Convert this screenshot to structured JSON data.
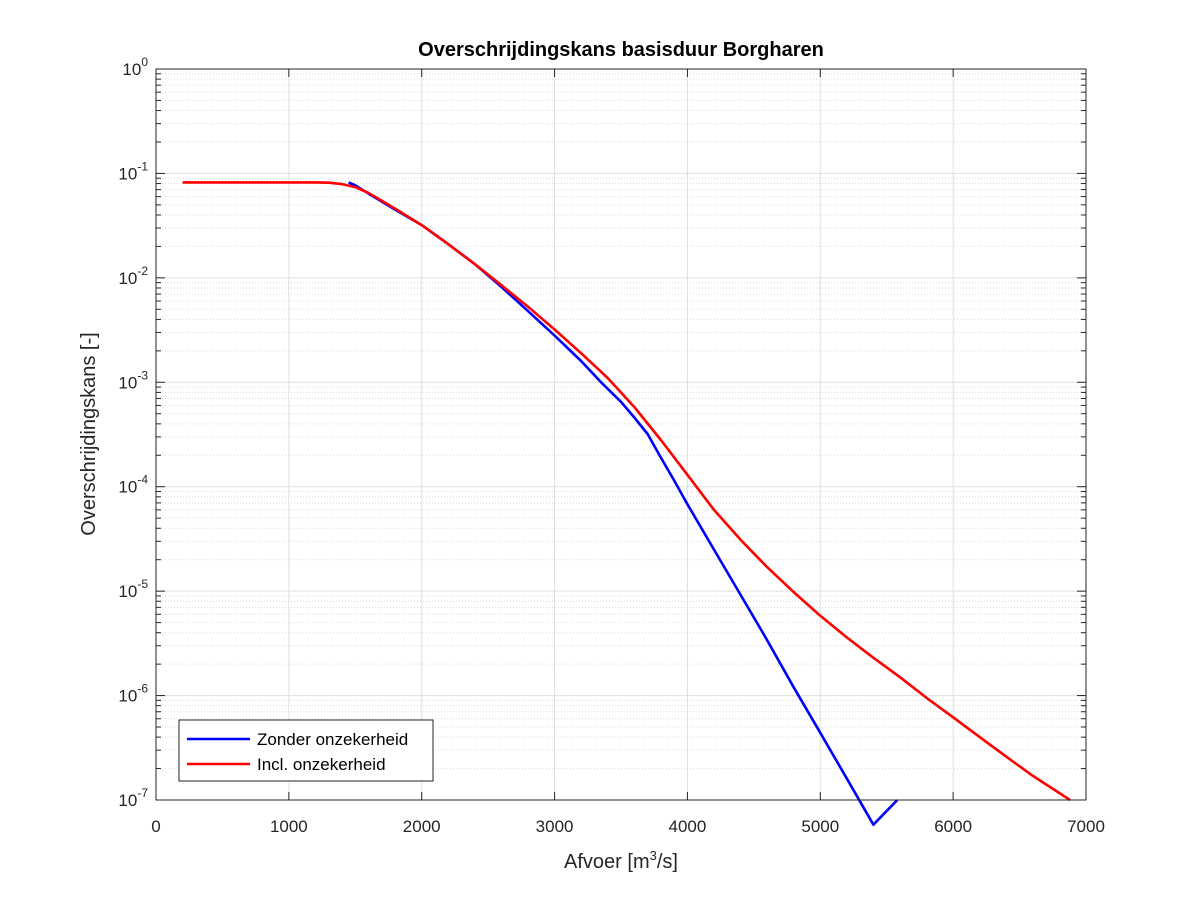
{
  "chart_data": {
    "type": "line",
    "title": "Overschrijdingskans basisduur Borgharen",
    "xlabel": {
      "prefix": "Afvoer [m",
      "sup": "3",
      "suffix": "/s]"
    },
    "ylabel": "Overschrijdingskans [-]",
    "xlim": [
      0,
      7000
    ],
    "ylim": [
      1e-07,
      1
    ],
    "yscale": "log",
    "grid": true,
    "minor_grid": true,
    "legend_position": "bottom-left",
    "x_ticks": [
      0,
      1000,
      2000,
      3000,
      4000,
      5000,
      6000,
      7000
    ],
    "x_tick_labels": [
      "0",
      "1000",
      "2000",
      "3000",
      "4000",
      "5000",
      "6000",
      "7000"
    ],
    "y_ticks": [
      {
        "value": 1,
        "base": "10",
        "exp": "0"
      },
      {
        "value": 0.1,
        "base": "10",
        "exp": "-1"
      },
      {
        "value": 0.01,
        "base": "10",
        "exp": "-2"
      },
      {
        "value": 0.001,
        "base": "10",
        "exp": "-3"
      },
      {
        "value": 0.0001,
        "base": "10",
        "exp": "-4"
      },
      {
        "value": 1e-05,
        "base": "10",
        "exp": "-5"
      },
      {
        "value": 1e-06,
        "base": "10",
        "exp": "-6"
      },
      {
        "value": 1e-07,
        "base": "10",
        "exp": "-7"
      }
    ],
    "series": [
      {
        "name": "Zonder onzekerheid",
        "color": "#0000ff",
        "x": [
          1450,
          1500,
          1600,
          1800,
          2000,
          2200,
          2400,
          2600,
          2800,
          3000,
          3200,
          3350,
          3500,
          3600,
          3700,
          3800,
          3900,
          4000,
          4200,
          4400,
          4600,
          4800,
          5000,
          5200,
          5400,
          5580
        ],
        "y": [
          0.082,
          0.077,
          0.064,
          0.045,
          0.032,
          0.021,
          0.0135,
          0.0082,
          0.0048,
          0.0028,
          0.0016,
          0.001,
          0.00065,
          0.00046,
          0.00032,
          0.00019,
          0.000115,
          6.8e-05,
          2.5e-05,
          9.2e-06,
          3.4e-06,
          1.2e-06,
          4.4e-07,
          1.6e-07,
          5.8e-08,
          1e-07
        ]
      },
      {
        "name": "Incl. onzekerheid",
        "color": "#ff0000",
        "x": [
          200,
          400,
          800,
          1200,
          1300,
          1400,
          1500,
          1600,
          1800,
          2000,
          2200,
          2400,
          2600,
          2800,
          3000,
          3200,
          3400,
          3600,
          3800,
          4000,
          4200,
          4400,
          4600,
          4800,
          5000,
          5200,
          5400,
          5600,
          5800,
          6000,
          6200,
          6400,
          6600,
          6880
        ],
        "y": [
          0.082,
          0.082,
          0.082,
          0.082,
          0.0815,
          0.079,
          0.074,
          0.065,
          0.046,
          0.032,
          0.021,
          0.0135,
          0.0085,
          0.0053,
          0.0032,
          0.0019,
          0.0011,
          0.00058,
          0.00028,
          0.00013,
          6e-05,
          3.1e-05,
          1.7e-05,
          9.8e-06,
          5.8e-06,
          3.6e-06,
          2.3e-06,
          1.5e-06,
          9.5e-07,
          6.2e-07,
          4e-07,
          2.6e-07,
          1.7e-07,
          1e-07
        ]
      }
    ]
  }
}
